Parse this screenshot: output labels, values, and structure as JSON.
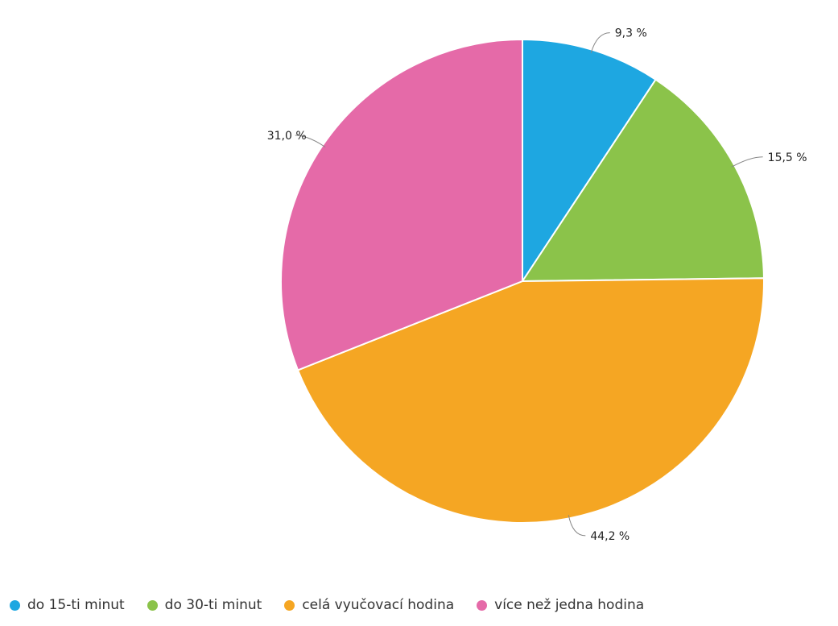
{
  "chart_data": {
    "type": "pie",
    "title": "",
    "slices": [
      {
        "name": "do 15-ti minut",
        "value": 9.3,
        "label": "9,3 %",
        "color": "#1ea7e1"
      },
      {
        "name": "do 30-ti minut",
        "value": 15.5,
        "label": "15,5 %",
        "color": "#8bc34a"
      },
      {
        "name": "celá vyučovací hodina",
        "value": 44.2,
        "label": "44,2 %",
        "color": "#f5a623"
      },
      {
        "name": "více než jedna hodina",
        "value": 31.0,
        "label": "31,0 %",
        "color": "#e56aa8"
      }
    ],
    "legend_position": "bottom-left"
  }
}
